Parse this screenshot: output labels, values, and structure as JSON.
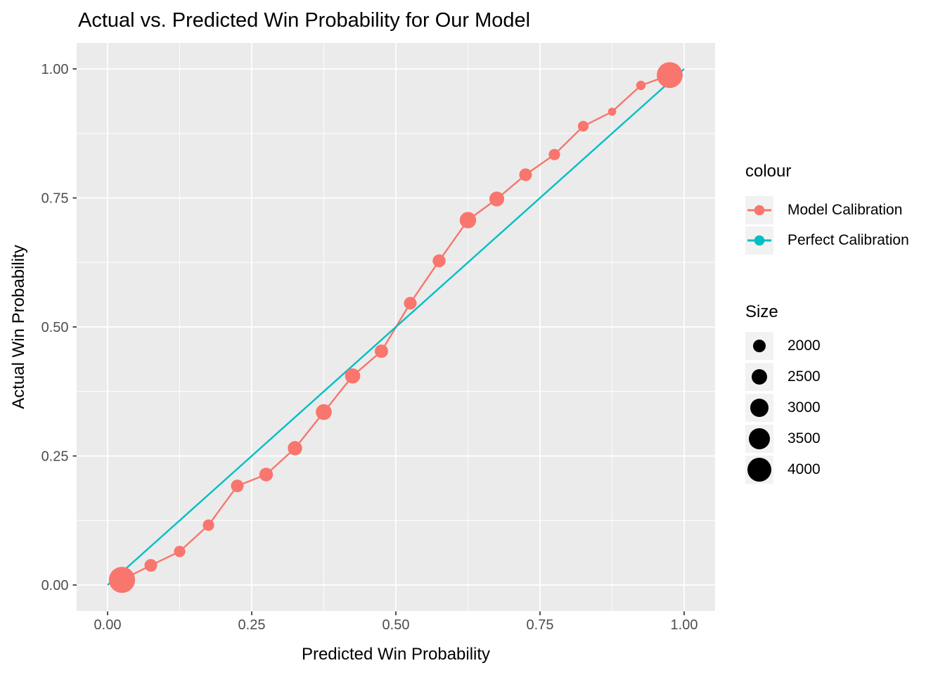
{
  "chart_data": {
    "type": "scatter",
    "subtype": "calibration-curve-with-sized-points-and-reference-line",
    "title": "Actual vs. Predicted Win Probability for Our Model",
    "xlabel": "Predicted Win Probability",
    "ylabel": "Actual Win Probability",
    "xlim": [
      0,
      1
    ],
    "ylim": [
      0,
      1
    ],
    "grid": "white major and minor gridlines on grey panel",
    "legend_position": "right",
    "x_ticks": {
      "values": [
        0,
        0.25,
        0.5,
        0.75,
        1
      ],
      "labels": [
        "0.00",
        "0.25",
        "0.50",
        "0.75",
        "1.00"
      ]
    },
    "y_ticks": {
      "values": [
        0,
        0.25,
        0.5,
        0.75,
        1
      ],
      "labels": [
        "0.00",
        "0.25",
        "0.50",
        "0.75",
        "1.00"
      ]
    },
    "minor_ticks": [
      0.125,
      0.375,
      0.625,
      0.875
    ],
    "series": [
      {
        "name": "Model Calibration",
        "color": "#F8766D",
        "style": "line with size-mapped points",
        "points": [
          {
            "x": 0.025,
            "y": 0.01,
            "size": 4400
          },
          {
            "x": 0.075,
            "y": 0.038,
            "size": 2000
          },
          {
            "x": 0.125,
            "y": 0.065,
            "size": 1800
          },
          {
            "x": 0.175,
            "y": 0.116,
            "size": 1800
          },
          {
            "x": 0.225,
            "y": 0.192,
            "size": 2000
          },
          {
            "x": 0.275,
            "y": 0.214,
            "size": 2150
          },
          {
            "x": 0.325,
            "y": 0.265,
            "size": 2250
          },
          {
            "x": 0.375,
            "y": 0.335,
            "size": 2500
          },
          {
            "x": 0.425,
            "y": 0.405,
            "size": 2400
          },
          {
            "x": 0.475,
            "y": 0.453,
            "size": 2100
          },
          {
            "x": 0.525,
            "y": 0.546,
            "size": 2000
          },
          {
            "x": 0.575,
            "y": 0.628,
            "size": 2050
          },
          {
            "x": 0.625,
            "y": 0.707,
            "size": 2600
          },
          {
            "x": 0.675,
            "y": 0.748,
            "size": 2350
          },
          {
            "x": 0.725,
            "y": 0.795,
            "size": 2000
          },
          {
            "x": 0.775,
            "y": 0.834,
            "size": 1800
          },
          {
            "x": 0.825,
            "y": 0.889,
            "size": 1700
          },
          {
            "x": 0.875,
            "y": 0.917,
            "size": 1300
          },
          {
            "x": 0.925,
            "y": 0.968,
            "size": 1500
          },
          {
            "x": 0.975,
            "y": 0.988,
            "size": 4350
          }
        ]
      },
      {
        "name": "Perfect Calibration",
        "color": "#00BFC4",
        "style": "straight line",
        "points": [
          {
            "x": 0,
            "y": 0
          },
          {
            "x": 1,
            "y": 1
          }
        ]
      }
    ],
    "legends": {
      "colour": {
        "title": "colour",
        "entries": [
          {
            "label": "Model Calibration",
            "color": "#F8766D"
          },
          {
            "label": "Perfect Calibration",
            "color": "#00BFC4"
          }
        ]
      },
      "size": {
        "title": "Size",
        "entries": [
          {
            "label": "2000",
            "size": 2000
          },
          {
            "label": "2500",
            "size": 2500
          },
          {
            "label": "3000",
            "size": 3000
          },
          {
            "label": "3500",
            "size": 3500
          },
          {
            "label": "4000",
            "size": 4000
          }
        ]
      }
    },
    "size_scale": {
      "anchors_size": [
        2000,
        2500,
        3000,
        3500,
        4000
      ],
      "anchors_radius_px": [
        9,
        11.3,
        13.3,
        15,
        17
      ]
    }
  },
  "theme": {
    "background": "#FFFFFF",
    "panel_bg": "#EBEBEB",
    "grid_color": "#FFFFFF",
    "tick_label_color": "#4D4D4D",
    "axis_tick_color": "#333333",
    "text_color": "#000000",
    "legend_key_bg": "#F2F2F2",
    "size_dot_color": "#000000"
  }
}
